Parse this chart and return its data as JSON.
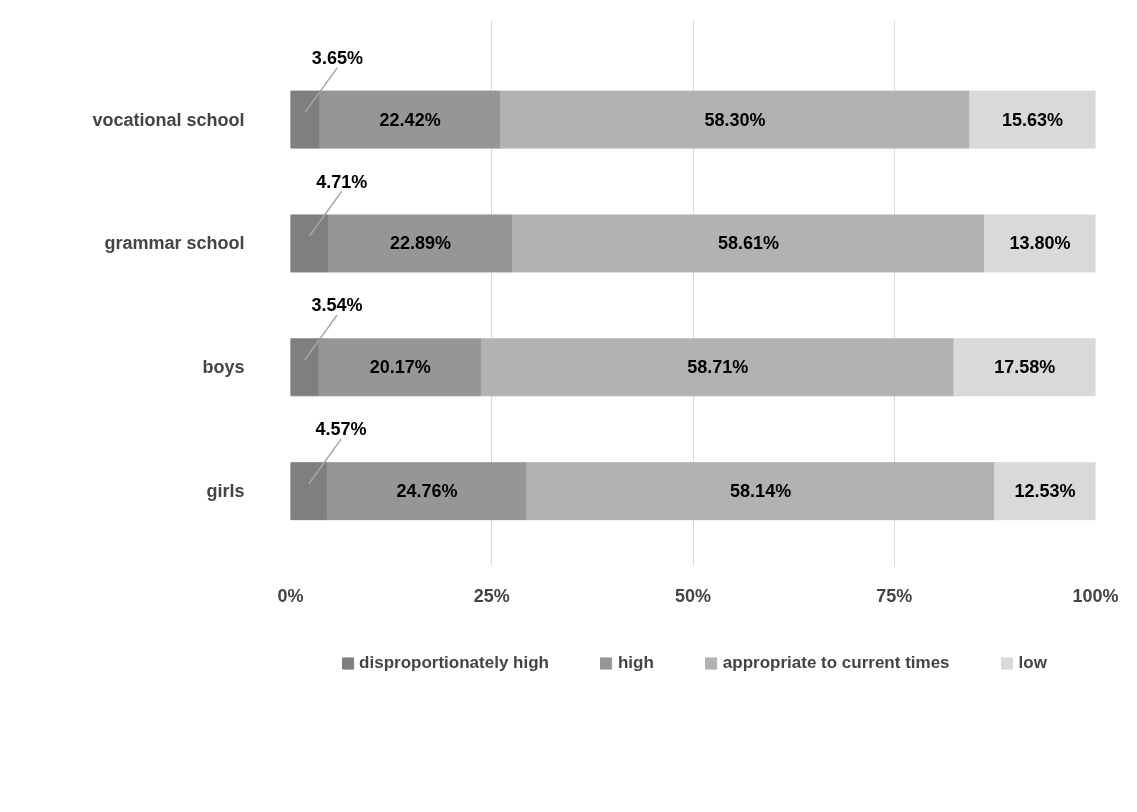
{
  "chart_data": {
    "type": "bar",
    "orientation": "horizontal",
    "stacked": true,
    "categories": [
      "vocational school",
      "grammar school",
      "boys",
      "girls"
    ],
    "series": [
      {
        "name": "disproportionately high",
        "color": "#7f7f7f",
        "values": [
          3.65,
          4.71,
          3.54,
          4.57
        ],
        "value_labels": [
          "3.65%",
          "4.71%",
          "3.54%",
          "4.57%"
        ]
      },
      {
        "name": "high",
        "color": "#969696",
        "values": [
          22.42,
          22.89,
          20.17,
          24.76
        ],
        "value_labels": [
          "22.42%",
          "22.89%",
          "20.17%",
          "24.76%"
        ]
      },
      {
        "name": "appropriate to current times",
        "color": "#b2b2b2",
        "values": [
          58.3,
          58.61,
          58.71,
          58.14
        ],
        "value_labels": [
          "58.30%",
          "58.61%",
          "58.71%",
          "58.14%"
        ]
      },
      {
        "name": "low",
        "color": "#d9d9d9",
        "values": [
          15.63,
          13.8,
          17.58,
          12.53
        ],
        "value_labels": [
          "15.63%",
          "13.80%",
          "17.58%",
          "12.53%"
        ]
      }
    ],
    "xlim": [
      0,
      100
    ],
    "xticks": [
      {
        "value": 0,
        "label": "0%"
      },
      {
        "value": 25,
        "label": "25%"
      },
      {
        "value": 50,
        "label": "50%"
      },
      {
        "value": 75,
        "label": "75%"
      },
      {
        "value": 100,
        "label": "100%"
      }
    ],
    "grid": "x",
    "legend": "bottom"
  }
}
